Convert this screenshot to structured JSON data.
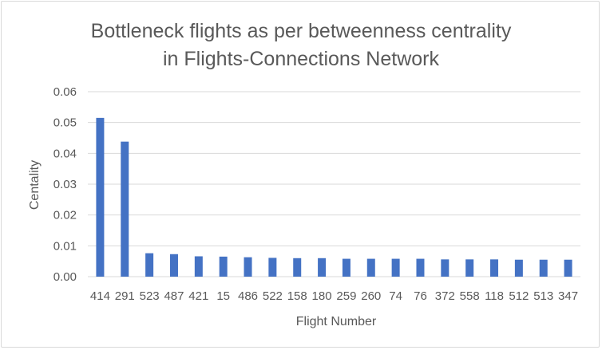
{
  "chart_data": {
    "type": "bar",
    "title_line1": "Bottleneck flights as per betweenness centrality",
    "title_line2": "in Flights-Connections Network",
    "xlabel": "Flight Number",
    "ylabel": "Centality",
    "ylim": [
      0,
      0.06
    ],
    "yticks": [
      "0.00",
      "0.01",
      "0.02",
      "0.03",
      "0.04",
      "0.05",
      "0.06"
    ],
    "grid": true,
    "bar_color": "#4472c4",
    "categories": [
      "414",
      "291",
      "523",
      "487",
      "421",
      "15",
      "486",
      "522",
      "158",
      "180",
      "259",
      "260",
      "74",
      "76",
      "372",
      "558",
      "118",
      "512",
      "513",
      "347"
    ],
    "values": [
      0.0515,
      0.0438,
      0.0076,
      0.0073,
      0.0066,
      0.0065,
      0.0063,
      0.0061,
      0.006,
      0.006,
      0.0058,
      0.0058,
      0.0058,
      0.0058,
      0.0056,
      0.0056,
      0.0056,
      0.0055,
      0.0055,
      0.0055
    ]
  }
}
